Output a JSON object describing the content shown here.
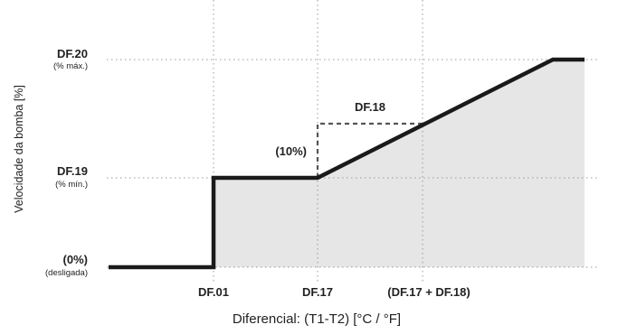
{
  "diagram": {
    "y_axis_label": "Velocidade da bomba [%]",
    "x_axis_label": "Diferencial: (T1-T2) [°C / °F]",
    "y_levels": {
      "max": {
        "main": "DF.20",
        "sub": "(% máx.)"
      },
      "min": {
        "main": "DF.19",
        "sub": "(% mín.)"
      },
      "off": {
        "main": "(0%)",
        "sub": "(desligada)"
      }
    },
    "x_ticks": [
      "DF.01",
      "DF.17",
      "(DF.17 + DF.18)"
    ],
    "annotations": {
      "step_label": "(10%)",
      "span_label": "DF.18"
    },
    "colors": {
      "curve": "#1a1a1a",
      "fill": "#e6e6e6",
      "grid": "#999999",
      "text": "#222222"
    }
  }
}
